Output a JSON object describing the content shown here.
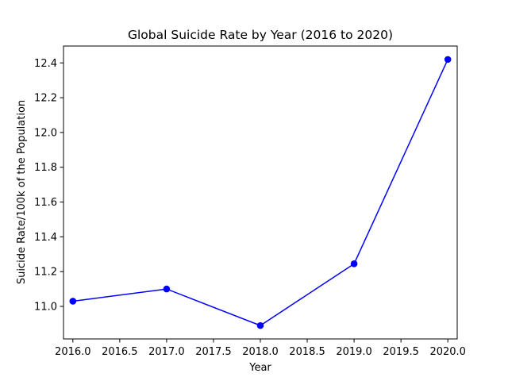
{
  "chart_data": {
    "type": "line",
    "title": "Global Suicide Rate by Year (2016 to 2020)",
    "xlabel": "Year",
    "ylabel": "Suicide Rate/100k of the Population",
    "x": [
      2016,
      2017,
      2018,
      2019,
      2020
    ],
    "series": [
      {
        "values": [
          11.03,
          11.1,
          10.89,
          11.245,
          12.42
        ],
        "color": "#0000ff",
        "marker": "circle"
      }
    ],
    "xlim": [
      2015.9,
      2020.1
    ],
    "ylim": [
      10.813,
      12.497
    ],
    "xticks": [
      2016.0,
      2016.5,
      2017.0,
      2017.5,
      2018.0,
      2018.5,
      2019.0,
      2019.5,
      2020.0
    ],
    "xtick_labels": [
      "2016.0",
      "2016.5",
      "2017.0",
      "2017.5",
      "2018.0",
      "2018.5",
      "2019.0",
      "2019.5",
      "2020.0"
    ],
    "yticks": [
      11.0,
      11.2,
      11.4,
      11.6,
      11.8,
      12.0,
      12.2,
      12.4
    ],
    "ytick_labels": [
      "11.0",
      "11.2",
      "11.4",
      "11.6",
      "11.8",
      "12.0",
      "12.2",
      "12.4"
    ],
    "grid": false,
    "legend": "none"
  }
}
